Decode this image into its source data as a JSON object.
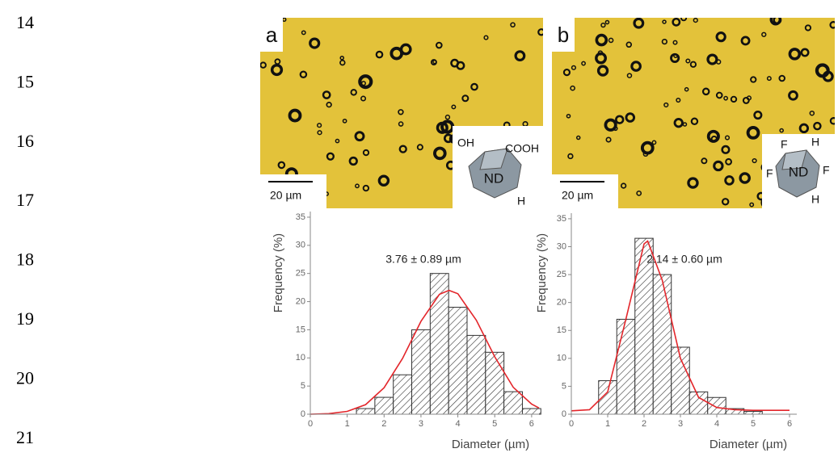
{
  "line_numbers": [
    "14",
    "15",
    "16",
    "17",
    "18",
    "19",
    "20",
    "21"
  ],
  "panels": [
    {
      "label": "a",
      "scale_bar": "20 µm",
      "inset": [
        "OH",
        "COOH",
        "ND",
        "H"
      ]
    },
    {
      "label": "b",
      "scale_bar": "20 µm",
      "inset": [
        "F",
        "H",
        "ND",
        "F",
        "F",
        "H"
      ]
    }
  ],
  "chart_data": [
    {
      "type": "histogram",
      "xlabel": "Diameter (µm)",
      "ylabel": "Frequency (%)",
      "annotation": "3.76 ± 0.89 µm",
      "bins": [
        1.25,
        1.75,
        2.25,
        2.75,
        3.25,
        3.75,
        4.25,
        4.75,
        5.25,
        5.75,
        6.25
      ],
      "values": [
        1,
        3,
        7,
        15,
        25,
        19,
        14,
        11,
        4,
        1
      ],
      "color": "#333333",
      "fit": {
        "color": "#e3262b",
        "x": [
          0,
          0.5,
          1,
          1.5,
          2,
          2.5,
          3,
          3.5,
          3.76,
          4,
          4.5,
          5,
          5.5,
          6,
          6.2
        ],
        "values": [
          0,
          0.1,
          0.5,
          1.7,
          4.7,
          9.9,
          16.5,
          21.3,
          22,
          21.4,
          16.7,
          10.2,
          4.8,
          1.8,
          1.1
        ]
      },
      "xlim": [
        0,
        6.2
      ],
      "ylim": [
        0,
        36
      ],
      "xticks": [
        0,
        1,
        2,
        3,
        4,
        5,
        6
      ],
      "yticks": [
        0,
        5,
        10,
        15,
        20,
        25,
        30,
        35
      ]
    },
    {
      "type": "histogram",
      "xlabel": "Diameter (µm)",
      "ylabel": "Frequency (%)",
      "annotation": "2.14 ± 0.60 µm",
      "bins": [
        0.75,
        1.25,
        1.75,
        2.25,
        2.75,
        3.25,
        3.75,
        4.25,
        4.75,
        5.25
      ],
      "values": [
        6,
        17,
        31.5,
        25,
        12,
        4,
        3,
        1,
        0.5
      ],
      "color": "#333333",
      "fit": {
        "color": "#e3262b",
        "x": [
          0,
          0.5,
          1,
          1.5,
          2,
          2.1,
          2.5,
          3,
          3.5,
          4,
          4.5,
          5,
          6
        ],
        "values": [
          0.6,
          0.8,
          4,
          17,
          30.5,
          31,
          24,
          10,
          3,
          1.2,
          0.8,
          0.7,
          0.7
        ]
      },
      "xlim": [
        0,
        6.2
      ],
      "ylim": [
        0,
        36
      ],
      "xticks": [
        0,
        1,
        2,
        3,
        4,
        5,
        6
      ],
      "yticks": [
        0,
        5,
        10,
        15,
        20,
        25,
        30,
        35
      ]
    }
  ]
}
